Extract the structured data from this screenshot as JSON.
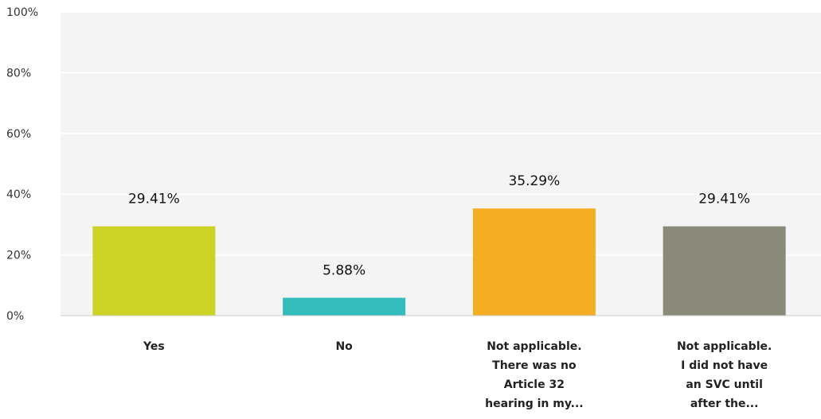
{
  "chart_data": {
    "type": "bar",
    "categories": [
      "Yes",
      "No",
      "Not applicable. There was no Article 32 hearing in my...",
      "Not applicable. I did not have an SVC until after the..."
    ],
    "category_lines": [
      [
        "Yes"
      ],
      [
        "No"
      ],
      [
        "Not applicable.",
        "There was no",
        "Article 32",
        "hearing in my..."
      ],
      [
        "Not applicable.",
        "I did not have",
        "an SVC until",
        "after the..."
      ]
    ],
    "values": [
      29.41,
      5.88,
      35.29,
      29.41
    ],
    "value_labels": [
      "29.41%",
      "5.88%",
      "35.29%",
      "29.41%"
    ],
    "colors": [
      "#cdd325",
      "#32bcbc",
      "#f5ae23",
      "#8a8a7a"
    ],
    "yticks": [
      0,
      20,
      40,
      60,
      80,
      100
    ],
    "ytick_labels": [
      "0%",
      "20%",
      "40%",
      "60%",
      "80%",
      "100%"
    ],
    "ylim": [
      0,
      100
    ],
    "grid": true,
    "title": "",
    "xlabel": "",
    "ylabel": ""
  }
}
